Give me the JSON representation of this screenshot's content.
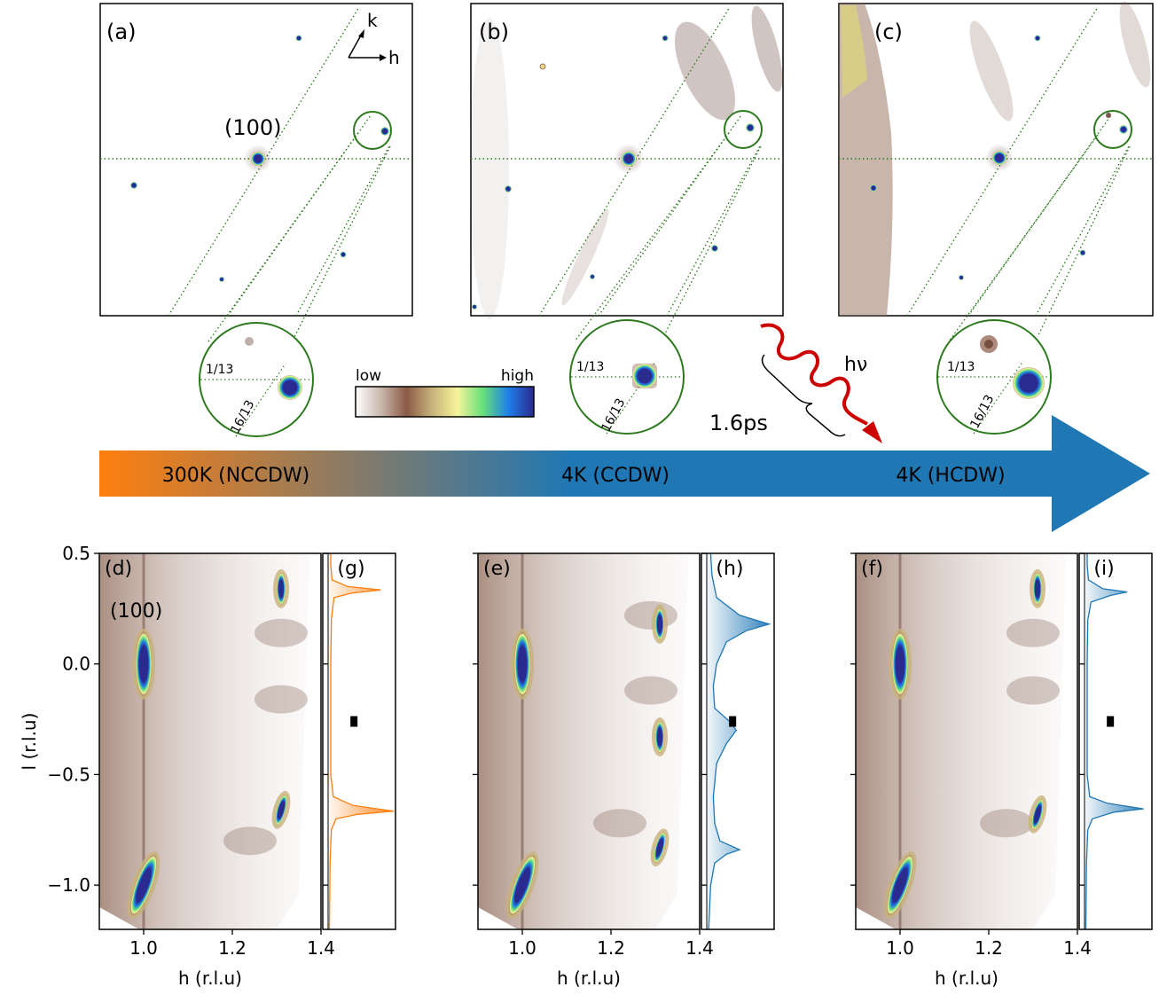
{
  "top_panels": [
    {
      "label": "(a)",
      "zoom_labels": [
        "1/13",
        "16/13"
      ]
    },
    {
      "label": "(b)",
      "zoom_labels": [
        "1/13",
        "16/13"
      ]
    },
    {
      "label": "(c)",
      "zoom_labels": [
        "1/13",
        "16/13"
      ]
    }
  ],
  "peak_label": "(100)",
  "axis_glyphs": {
    "k": "k",
    "h": "h"
  },
  "colorbar": {
    "low": "low",
    "high": "high",
    "colors": [
      "#ffffff",
      "#c9b7ac",
      "#8a5a45",
      "#c8b27a",
      "#f6f49a",
      "#66e07a",
      "#1f7fe8",
      "#2a2a8f"
    ]
  },
  "pump": {
    "label": "hν",
    "delay": "1.6ps",
    "color": "#cc0000"
  },
  "phase_arrow": {
    "stages": [
      "300K (NCCDW)",
      "4K (CCDW)",
      "4K (HCDW)"
    ],
    "gradient": [
      "#ff7f0e",
      "#1f77b4"
    ]
  },
  "chart_data": [
    {
      "type": "heatmap",
      "panel_label": "(d)",
      "xlabel": "h (r.l.u)",
      "ylabel": "l (r.l.u)",
      "xlim": [
        0.9,
        1.4
      ],
      "ylim": [
        -1.2,
        0.5
      ],
      "xticks": [
        "1.0",
        "1.2",
        "1.4"
      ],
      "yticks": [
        "0.5",
        "0.0",
        "−0.5",
        "−1.0"
      ],
      "annotation": "(100)",
      "peaks": [
        {
          "h": 1.0,
          "l": 0.0
        },
        {
          "h": 1.0,
          "l": -1.0
        },
        {
          "h": 1.31,
          "l": 0.34
        },
        {
          "h": 1.31,
          "l": -0.66
        }
      ],
      "diffuse": [
        {
          "h": 1.31,
          "l": 0.14
        },
        {
          "h": 1.31,
          "l": -0.16
        },
        {
          "h": 1.24,
          "l": -0.8
        }
      ]
    },
    {
      "type": "line",
      "panel_label": "(g)",
      "ylabel": "",
      "color": "#ff7f0e",
      "x": [
        -1.2,
        -0.9,
        -0.75,
        -0.7,
        -0.68,
        -0.665,
        -0.64,
        -0.6,
        -0.5,
        -0.3,
        0.0,
        0.2,
        0.3,
        0.32,
        0.335,
        0.35,
        0.38,
        0.45,
        0.5
      ],
      "y": [
        0.02,
        0.03,
        0.05,
        0.12,
        0.45,
        1.0,
        0.38,
        0.08,
        0.04,
        0.04,
        0.04,
        0.05,
        0.09,
        0.35,
        0.8,
        0.3,
        0.06,
        0.04,
        0.04
      ]
    },
    {
      "type": "heatmap",
      "panel_label": "(e)",
      "xlabel": "h (r.l.u)",
      "ylabel": "",
      "xlim": [
        0.9,
        1.4
      ],
      "ylim": [
        -1.2,
        0.5
      ],
      "xticks": [
        "1.0",
        "1.2",
        "1.4"
      ],
      "peaks": [
        {
          "h": 1.0,
          "l": 0.0
        },
        {
          "h": 1.0,
          "l": -1.0
        },
        {
          "h": 1.31,
          "l": 0.18
        },
        {
          "h": 1.31,
          "l": -0.33
        },
        {
          "h": 1.31,
          "l": -0.83
        }
      ],
      "diffuse": [
        {
          "h": 1.29,
          "l": 0.22
        },
        {
          "h": 1.29,
          "l": -0.12
        },
        {
          "h": 1.22,
          "l": -0.72
        }
      ]
    },
    {
      "type": "line",
      "panel_label": "(h)",
      "ylabel": "",
      "color": "#1f77b4",
      "x": [
        -1.2,
        -1.0,
        -0.9,
        -0.86,
        -0.84,
        -0.8,
        -0.72,
        -0.6,
        -0.45,
        -0.36,
        -0.3,
        -0.26,
        -0.2,
        -0.1,
        0.0,
        0.1,
        0.15,
        0.18,
        0.22,
        0.3,
        0.4,
        0.5
      ],
      "y": [
        0.03,
        0.06,
        0.12,
        0.3,
        0.5,
        0.2,
        0.12,
        0.1,
        0.15,
        0.3,
        0.45,
        0.35,
        0.12,
        0.1,
        0.15,
        0.3,
        0.6,
        0.95,
        0.5,
        0.15,
        0.08,
        0.06
      ]
    },
    {
      "type": "heatmap",
      "panel_label": "(f)",
      "xlabel": "h (r.l.u)",
      "ylabel": "",
      "xlim": [
        0.9,
        1.4
      ],
      "ylim": [
        -1.2,
        0.5
      ],
      "xticks": [
        "1.0",
        "1.2",
        "1.4"
      ],
      "peaks": [
        {
          "h": 1.0,
          "l": 0.0
        },
        {
          "h": 1.0,
          "l": -1.0
        },
        {
          "h": 1.31,
          "l": 0.34
        },
        {
          "h": 1.31,
          "l": -0.68
        }
      ],
      "diffuse": [
        {
          "h": 1.3,
          "l": 0.14
        },
        {
          "h": 1.3,
          "l": -0.12
        },
        {
          "h": 1.24,
          "l": -0.72
        }
      ]
    },
    {
      "type": "line",
      "panel_label": "(i)",
      "ylabel": "",
      "color": "#1f77b4",
      "x": [
        -1.2,
        -0.9,
        -0.75,
        -0.7,
        -0.67,
        -0.655,
        -0.63,
        -0.6,
        -0.5,
        -0.3,
        0.0,
        0.2,
        0.28,
        0.31,
        0.325,
        0.34,
        0.38,
        0.45,
        0.5
      ],
      "y": [
        0.02,
        0.03,
        0.05,
        0.12,
        0.45,
        0.9,
        0.35,
        0.08,
        0.04,
        0.04,
        0.04,
        0.05,
        0.1,
        0.4,
        0.65,
        0.28,
        0.06,
        0.04,
        0.04
      ]
    }
  ]
}
